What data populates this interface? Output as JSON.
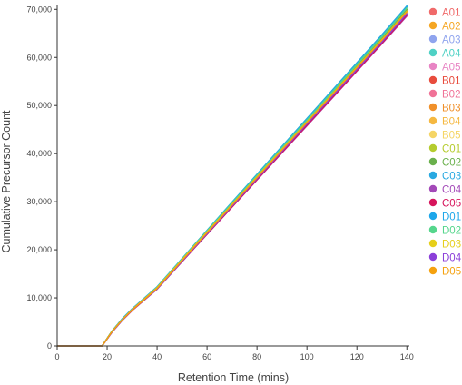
{
  "chart_data": {
    "type": "line",
    "title": "",
    "xlabel": "Retention Time (mins)",
    "ylabel": "Cumulative Precursor Count",
    "xlim": [
      0,
      141
    ],
    "ylim": [
      0,
      71000
    ],
    "xticks": [
      0,
      20,
      40,
      60,
      80,
      100,
      120,
      140
    ],
    "xtick_labels": [
      "0",
      "20",
      "40",
      "60",
      "80",
      "100",
      "120",
      "140"
    ],
    "yticks": [
      0,
      10000,
      20000,
      30000,
      40000,
      50000,
      60000,
      70000
    ],
    "ytick_labels": [
      "0",
      "10,000",
      "20,000",
      "30,000",
      "40,000",
      "50,000",
      "60,000",
      "70,000"
    ],
    "grid": false,
    "legend_position": "right",
    "series": [
      {
        "name": "A01",
        "color": "#f06a6a",
        "x": [
          0,
          18,
          22,
          26,
          30,
          40,
          55,
          70,
          100,
          130,
          140
        ],
        "y": [
          0,
          0,
          3000,
          5400,
          7500,
          12000,
          20600,
          29200,
          46300,
          63400,
          69300
        ]
      },
      {
        "name": "A02",
        "color": "#f5a623",
        "x": [
          0,
          18,
          22,
          26,
          30,
          40,
          55,
          70,
          100,
          130,
          140
        ],
        "y": [
          0,
          0,
          3100,
          5500,
          7600,
          12100,
          20800,
          29500,
          46700,
          63800,
          69700
        ]
      },
      {
        "name": "A03",
        "color": "#8fa4ee",
        "x": [
          0,
          18,
          22,
          26,
          30,
          40,
          55,
          70,
          100,
          130,
          140
        ],
        "y": [
          0,
          0,
          3000,
          5500,
          7600,
          12100,
          20900,
          29700,
          47000,
          64200,
          70100
        ]
      },
      {
        "name": "A04",
        "color": "#4fd1c5",
        "x": [
          0,
          18,
          22,
          26,
          30,
          40,
          55,
          70,
          100,
          130,
          140
        ],
        "y": [
          0,
          0,
          3100,
          5600,
          7700,
          12300,
          21100,
          29900,
          47300,
          64600,
          70600
        ]
      },
      {
        "name": "A05",
        "color": "#e884c4",
        "x": [
          0,
          18,
          22,
          26,
          30,
          40,
          55,
          70,
          100,
          130,
          140
        ],
        "y": [
          0,
          0,
          3000,
          5400,
          7500,
          12000,
          20700,
          29300,
          46500,
          63600,
          69500
        ]
      },
      {
        "name": "B01",
        "color": "#e84c3d",
        "x": [
          0,
          18,
          22,
          26,
          30,
          40,
          55,
          70,
          100,
          130,
          140
        ],
        "y": [
          0,
          0,
          2900,
          5300,
          7400,
          11900,
          20500,
          29000,
          46100,
          63100,
          69000
        ]
      },
      {
        "name": "B02",
        "color": "#f07297",
        "x": [
          0,
          18,
          22,
          26,
          30,
          40,
          55,
          70,
          100,
          130,
          140
        ],
        "y": [
          0,
          0,
          3000,
          5400,
          7500,
          12000,
          20600,
          29200,
          46300,
          63400,
          69300
        ]
      },
      {
        "name": "B03",
        "color": "#f0902a",
        "x": [
          0,
          18,
          22,
          26,
          30,
          40,
          55,
          70,
          100,
          130,
          140
        ],
        "y": [
          0,
          0,
          3100,
          5500,
          7600,
          12100,
          20800,
          29500,
          46700,
          63900,
          69900
        ]
      },
      {
        "name": "B04",
        "color": "#f5b840",
        "x": [
          0,
          18,
          22,
          26,
          30,
          40,
          55,
          70,
          100,
          130,
          140
        ],
        "y": [
          0,
          0,
          3100,
          5500,
          7600,
          12100,
          20800,
          29400,
          46600,
          63800,
          69700
        ]
      },
      {
        "name": "B05",
        "color": "#f5d565",
        "x": [
          0,
          18,
          22,
          26,
          30,
          40,
          55,
          70,
          100,
          130,
          140
        ],
        "y": [
          0,
          0,
          3000,
          5400,
          7500,
          12000,
          20700,
          29300,
          46400,
          63500,
          69400
        ]
      },
      {
        "name": "C01",
        "color": "#b5cc2e",
        "x": [
          0,
          18,
          22,
          26,
          30,
          40,
          55,
          70,
          100,
          130,
          140
        ],
        "y": [
          0,
          0,
          3100,
          5500,
          7600,
          12200,
          20900,
          29600,
          46900,
          64100,
          70000
        ]
      },
      {
        "name": "C02",
        "color": "#6ab04c",
        "x": [
          0,
          18,
          22,
          26,
          30,
          40,
          55,
          70,
          100,
          130,
          140
        ],
        "y": [
          0,
          0,
          3000,
          5500,
          7600,
          12100,
          20900,
          29600,
          46800,
          64000,
          69900
        ]
      },
      {
        "name": "C03",
        "color": "#29a9e1",
        "x": [
          0,
          18,
          22,
          26,
          30,
          40,
          55,
          70,
          100,
          130,
          140
        ],
        "y": [
          0,
          0,
          3100,
          5600,
          7700,
          12300,
          21100,
          29900,
          47300,
          64700,
          70700
        ]
      },
      {
        "name": "C04",
        "color": "#a349b8",
        "x": [
          0,
          18,
          22,
          26,
          30,
          40,
          55,
          70,
          100,
          130,
          140
        ],
        "y": [
          0,
          0,
          2900,
          5300,
          7400,
          11800,
          20400,
          28900,
          45800,
          62800,
          68600
        ]
      },
      {
        "name": "C05",
        "color": "#d6155c",
        "x": [
          0,
          18,
          22,
          26,
          30,
          40,
          55,
          70,
          100,
          130,
          140
        ],
        "y": [
          0,
          0,
          2900,
          5300,
          7400,
          11900,
          20400,
          28900,
          45900,
          62900,
          68800
        ]
      },
      {
        "name": "D01",
        "color": "#1ea7ea",
        "x": [
          0,
          18,
          22,
          26,
          30,
          40,
          55,
          70,
          100,
          130,
          140
        ],
        "y": [
          0,
          0,
          3100,
          5600,
          7700,
          12300,
          21000,
          29800,
          47200,
          64500,
          70500
        ]
      },
      {
        "name": "D02",
        "color": "#55d68c",
        "x": [
          0,
          18,
          22,
          26,
          30,
          40,
          55,
          70,
          100,
          130,
          140
        ],
        "y": [
          0,
          0,
          3100,
          5500,
          7600,
          12200,
          21000,
          29700,
          47000,
          64300,
          70300
        ]
      },
      {
        "name": "D03",
        "color": "#e6cf1a",
        "x": [
          0,
          18,
          22,
          26,
          30,
          40,
          55,
          70,
          100,
          130,
          140
        ],
        "y": [
          0,
          0,
          3000,
          5400,
          7600,
          12100,
          20800,
          29400,
          46600,
          63700,
          69600
        ]
      },
      {
        "name": "D04",
        "color": "#8b3fd9",
        "x": [
          0,
          18,
          22,
          26,
          30,
          40,
          55,
          70,
          100,
          130,
          140
        ],
        "y": [
          0,
          0,
          2900,
          5300,
          7500,
          11900,
          20500,
          29100,
          46200,
          63200,
          69100
        ]
      },
      {
        "name": "D05",
        "color": "#f5a10e",
        "x": [
          0,
          18,
          22,
          26,
          30,
          40,
          55,
          70,
          100,
          130,
          140
        ],
        "y": [
          0,
          0,
          3000,
          5400,
          7500,
          12000,
          20700,
          29300,
          46500,
          63600,
          69500
        ]
      }
    ]
  }
}
